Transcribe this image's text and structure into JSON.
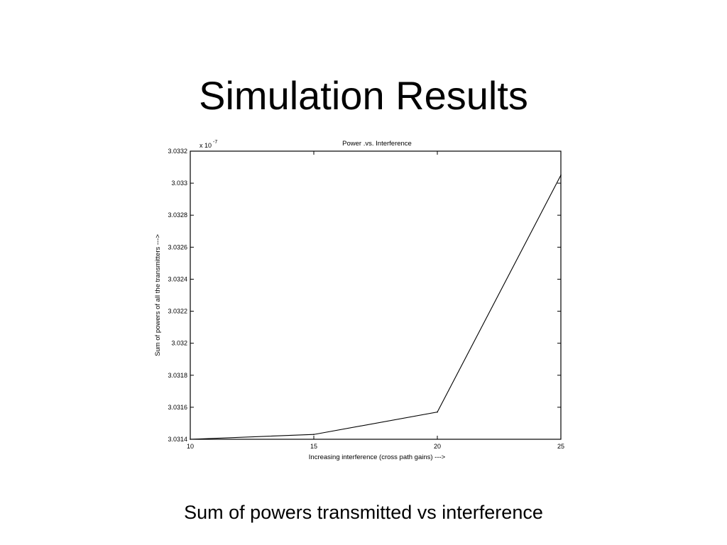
{
  "slide": {
    "title": "Simulation Results",
    "caption": "Sum of powers transmitted vs interference"
  },
  "chart_data": {
    "type": "line",
    "title": "Power .vs. Interference",
    "xlabel": "Increasing interference (cross path gains) --->",
    "ylabel": "Sum of powers of all the transmitters --->",
    "y_multiplier": "x 10",
    "y_multiplier_exponent": "-7",
    "xlim": [
      10,
      25
    ],
    "ylim": [
      3.0314,
      3.0332
    ],
    "x_ticks": [
      10,
      15,
      20,
      25
    ],
    "x_tick_labels": [
      "10",
      "15",
      "20",
      "25"
    ],
    "y_ticks": [
      3.0314,
      3.0316,
      3.0318,
      3.032,
      3.0322,
      3.0324,
      3.0326,
      3.0328,
      3.033,
      3.0332
    ],
    "y_tick_labels": [
      "3.0314",
      "3.0316",
      "3.0318",
      "3.032",
      "3.0322",
      "3.0324",
      "3.0326",
      "3.0328",
      "3.033",
      "3.0332"
    ],
    "grid": false,
    "series": [
      {
        "x": [
          10,
          15,
          20,
          25
        ],
        "values": [
          3.0314,
          3.03143,
          3.03157,
          3.03305
        ]
      }
    ]
  }
}
